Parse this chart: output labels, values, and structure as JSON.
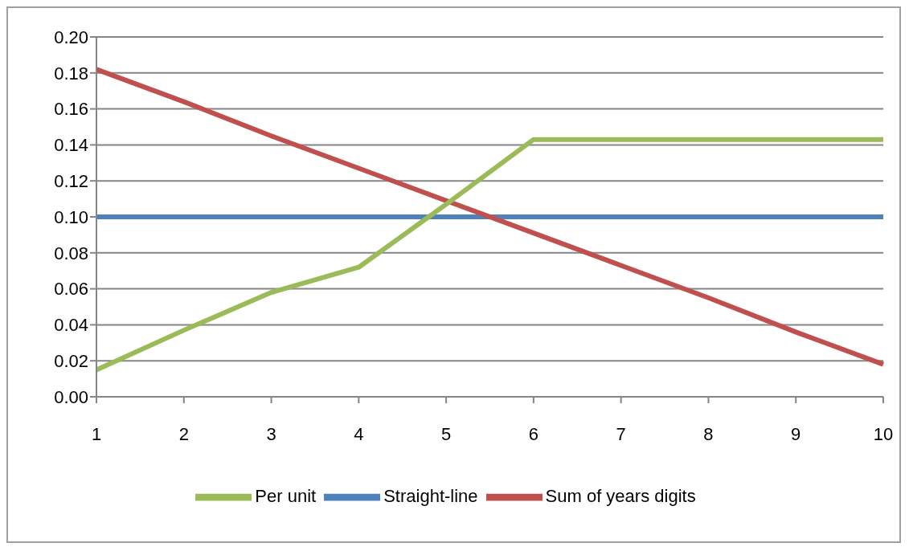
{
  "chart_data": {
    "type": "line",
    "categories": [
      "1",
      "2",
      "3",
      "4",
      "5",
      "6",
      "7",
      "8",
      "9",
      "10"
    ],
    "series": [
      {
        "name": "Straight-line",
        "color": "#4f81bd",
        "values": [
          0.1,
          0.1,
          0.1,
          0.1,
          0.1,
          0.1,
          0.1,
          0.1,
          0.1,
          0.1
        ]
      },
      {
        "name": "Sum of years digits",
        "color": "#c0504d",
        "values": [
          0.182,
          0.164,
          0.145,
          0.127,
          0.109,
          0.091,
          0.073,
          0.055,
          0.036,
          0.018
        ]
      },
      {
        "name": "Per unit",
        "color": "#9bbb59",
        "values": [
          0.015,
          0.037,
          0.058,
          0.072,
          0.107,
          0.143,
          0.143,
          0.143,
          0.143,
          0.143
        ]
      }
    ],
    "ylim": [
      0,
      0.2
    ],
    "yticks": [
      {
        "value": 0,
        "label": "0.00"
      },
      {
        "value": 0.02,
        "label": "0.02"
      },
      {
        "value": 0.04,
        "label": "0.04"
      },
      {
        "value": 0.06,
        "label": "0.06"
      },
      {
        "value": 0.08,
        "label": "0.08"
      },
      {
        "value": 0.1,
        "label": "0.10"
      },
      {
        "value": 0.12,
        "label": "0.12"
      },
      {
        "value": 0.14,
        "label": "0.14"
      },
      {
        "value": 0.16,
        "label": "0.16"
      },
      {
        "value": 0.18,
        "label": "0.18"
      },
      {
        "value": 0.2,
        "label": "0.20"
      }
    ],
    "grid": "y",
    "legend": "bottom",
    "marker": "none",
    "line_style": "solid"
  }
}
